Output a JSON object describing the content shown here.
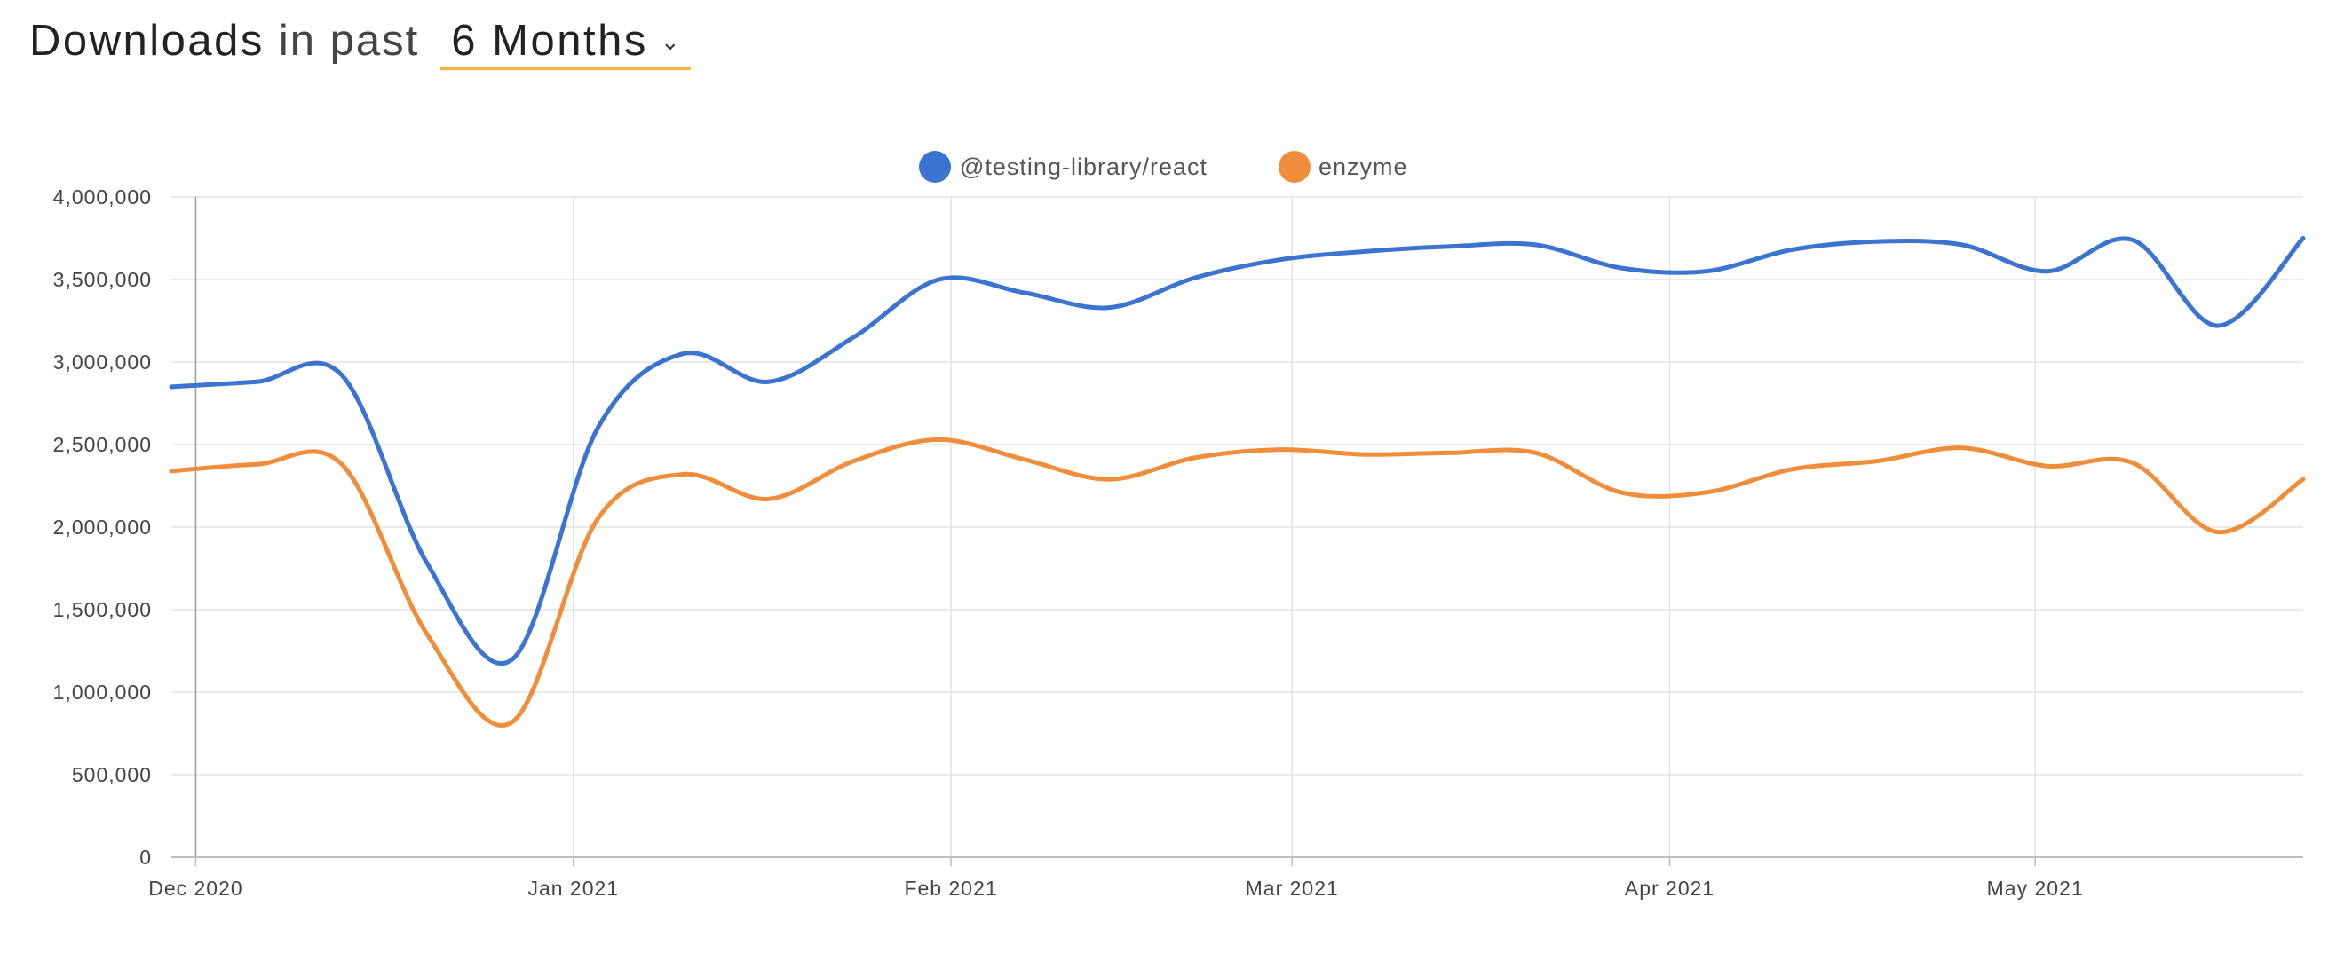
{
  "header": {
    "title": "Downloads",
    "subtitle": "in past",
    "range": "6 Months",
    "caret_icon": "chevron-down-icon"
  },
  "colors": {
    "series1": "#3b73d1",
    "series2": "#ef8d3b",
    "grid": "#e3e3e3",
    "axis": "#bdbdbd",
    "dropdown_underline": "#f0b43c"
  },
  "chart_data": {
    "type": "line",
    "ylim": [
      0,
      4000000
    ],
    "y_ticks": [
      0,
      500000,
      1000000,
      1500000,
      2000000,
      2500000,
      3000000,
      3500000,
      4000000
    ],
    "y_tick_labels": [
      "0",
      "500,000",
      "1,000,000",
      "1,500,000",
      "2,000,000",
      "2,500,000",
      "3,000,000",
      "3,500,000",
      "4,000,000"
    ],
    "x_ticks": [
      {
        "date": "2020-12-01",
        "label": "Dec 2020"
      },
      {
        "date": "2021-01-01",
        "label": "Jan 2021"
      },
      {
        "date": "2021-02-01",
        "label": "Feb 2021"
      },
      {
        "date": "2021-03-01",
        "label": "Mar 2021"
      },
      {
        "date": "2021-04-01",
        "label": "Apr 2021"
      },
      {
        "date": "2021-05-01",
        "label": "May 2021"
      }
    ],
    "xlim": [
      "2020-11-29",
      "2021-05-23"
    ],
    "grid": true,
    "legend_position": "top-center",
    "x": [
      "2020-11-29",
      "2020-12-06",
      "2020-12-13",
      "2020-12-20",
      "2020-12-27",
      "2021-01-03",
      "2021-01-10",
      "2021-01-17",
      "2021-01-24",
      "2021-01-31",
      "2021-02-07",
      "2021-02-14",
      "2021-02-21",
      "2021-02-28",
      "2021-03-07",
      "2021-03-14",
      "2021-03-21",
      "2021-03-28",
      "2021-04-04",
      "2021-04-11",
      "2021-04-18",
      "2021-04-25",
      "2021-05-02",
      "2021-05-09",
      "2021-05-16",
      "2021-05-23"
    ],
    "series": [
      {
        "name": "@testing-library/react",
        "values": [
          2850000,
          2880000,
          2920000,
          1780000,
          1200000,
          2600000,
          3050000,
          2880000,
          3150000,
          3500000,
          3420000,
          3330000,
          3510000,
          3620000,
          3670000,
          3700000,
          3710000,
          3570000,
          3550000,
          3680000,
          3730000,
          3710000,
          3550000,
          3740000,
          3220000,
          3750000
        ]
      },
      {
        "name": "enzyme",
        "values": [
          2340000,
          2380000,
          2380000,
          1350000,
          820000,
          2050000,
          2320000,
          2170000,
          2400000,
          2530000,
          2410000,
          2290000,
          2420000,
          2470000,
          2440000,
          2450000,
          2450000,
          2210000,
          2210000,
          2350000,
          2400000,
          2480000,
          2370000,
          2390000,
          1970000,
          2290000
        ]
      }
    ]
  }
}
